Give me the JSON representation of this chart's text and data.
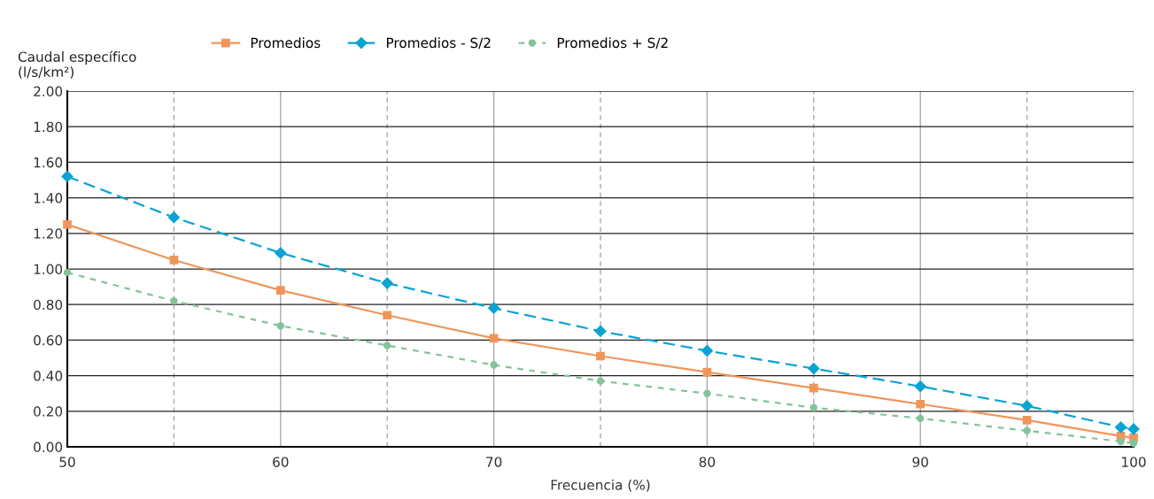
{
  "chart_data": {
    "type": "line",
    "xlabel": "Frecuencia (%)",
    "ylabel": "Caudal específico\n(l/s/km²)",
    "x": [
      50,
      55,
      60,
      65,
      70,
      75,
      80,
      85,
      90,
      95,
      99.4,
      100
    ],
    "series": [
      {
        "name": "Promedios",
        "color": "#f0955a",
        "marker": "square",
        "line_style": "solid",
        "values": [
          1.25,
          1.05,
          0.88,
          0.74,
          0.61,
          0.51,
          0.42,
          0.33,
          0.24,
          0.15,
          0.06,
          0.05
        ]
      },
      {
        "name": "Promedios - S/2",
        "color": "#0aa3d3",
        "marker": "diamond",
        "line_style": "dashed",
        "values": [
          1.52,
          1.29,
          1.09,
          0.92,
          0.78,
          0.65,
          0.54,
          0.44,
          0.34,
          0.23,
          0.11,
          0.1
        ]
      },
      {
        "name": "Promedios + S/2",
        "color": "#82c49a",
        "marker": "circle",
        "line_style": "dotted",
        "values": [
          0.98,
          0.82,
          0.68,
          0.57,
          0.46,
          0.37,
          0.3,
          0.22,
          0.16,
          0.09,
          0.03,
          0.02
        ]
      }
    ],
    "xlim": [
      50,
      100
    ],
    "ylim": [
      0,
      2
    ],
    "xticks": [
      50,
      {
        "value": 55,
        "label": null
      },
      60,
      {
        "value": 65,
        "label": null
      },
      70,
      {
        "value": 75,
        "label": null
      },
      80,
      {
        "value": 85,
        "label": null
      },
      90,
      {
        "value": 95,
        "label": null
      },
      100
    ],
    "yticks": [
      {
        "value": 0,
        "label": "0.00"
      },
      {
        "value": 0.2,
        "label": "0.20"
      },
      {
        "value": 0.4,
        "label": "0.40"
      },
      {
        "value": 0.6,
        "label": "0.60"
      },
      {
        "value": 0.8,
        "label": "0.80"
      },
      {
        "value": 1,
        "label": "1.00"
      },
      {
        "value": 1.2,
        "label": "1.20"
      },
      {
        "value": 1.4,
        "label": "1.40"
      },
      {
        "value": 1.6,
        "label": "1.60"
      },
      {
        "value": 1.8,
        "label": "1.80"
      },
      {
        "value": 2,
        "label": "2.00"
      }
    ],
    "grid": true,
    "legend": "top"
  }
}
